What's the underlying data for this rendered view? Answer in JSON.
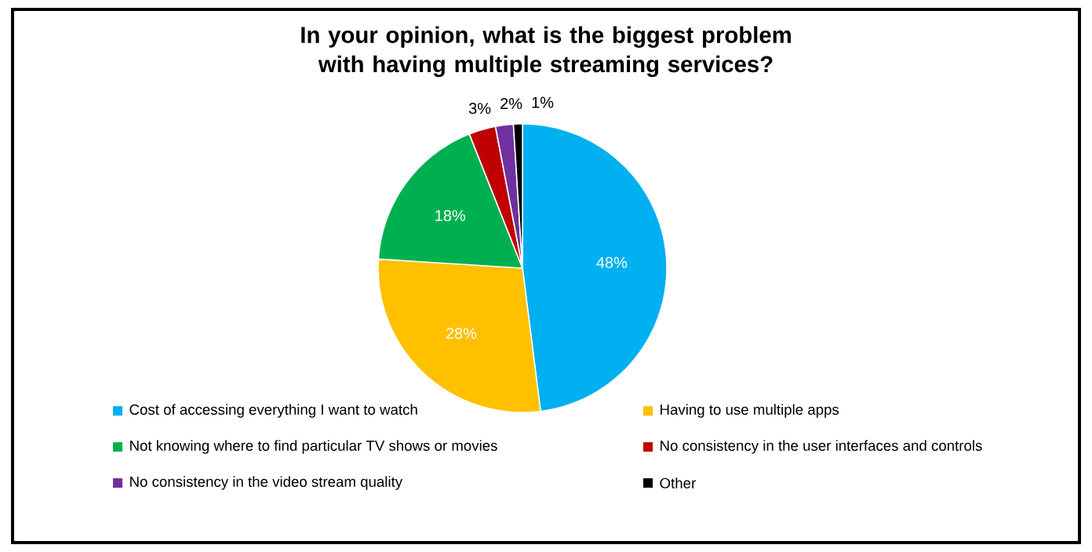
{
  "chart_data": {
    "type": "pie",
    "title": "In your opinion, what is the biggest problem with having multiple streaming services?",
    "categories": [
      "Cost of accessing everything I want to watch",
      "Having to use multiple apps",
      "Not knowing where to find particular TV shows or movies",
      "No consistency in the user interfaces and controls",
      "No consistency in the video stream quality",
      "Other"
    ],
    "values": [
      48,
      28,
      18,
      3,
      2,
      1
    ],
    "value_labels": [
      "48%",
      "28%",
      "18%",
      "3%",
      "2%",
      "1%"
    ],
    "colors": [
      "#00b0f0",
      "#ffc000",
      "#00b050",
      "#c00000",
      "#7030a0",
      "#000000"
    ],
    "legend": "bottom"
  }
}
